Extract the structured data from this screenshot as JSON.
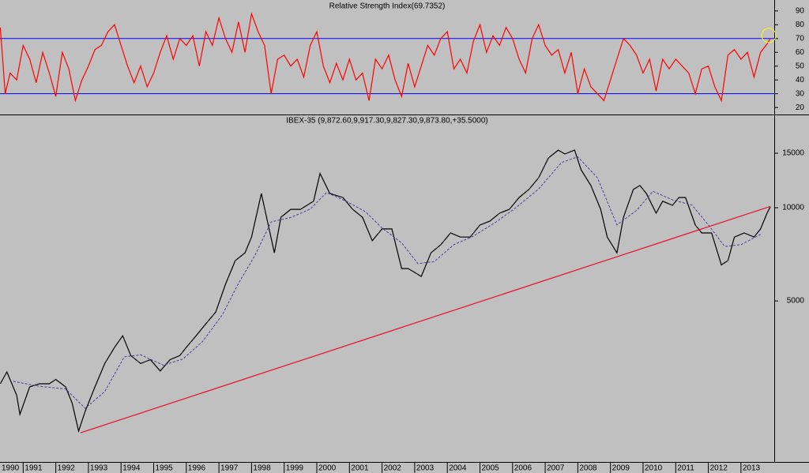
{
  "chart_data": [
    {
      "type": "line",
      "title": "Relative Strength Index(69.7352)",
      "xlim": [
        1990.29,
        2014.02
      ],
      "ylim": [
        15.5,
        96.8
      ],
      "yticks": [
        20,
        30,
        40,
        50,
        60,
        70,
        80,
        90
      ],
      "hlines": [
        70,
        30
      ],
      "hline_color": "#0000ff",
      "series": [
        {
          "color": "#ff0000",
          "x": [
            1990.3,
            1990.45,
            1990.6,
            1990.8,
            1991.0,
            1991.2,
            1991.4,
            1991.6,
            1991.8,
            1992.0,
            1992.2,
            1992.4,
            1992.6,
            1992.8,
            1993.0,
            1993.2,
            1993.4,
            1993.6,
            1993.8,
            1994.0,
            1994.2,
            1994.4,
            1994.6,
            1994.8,
            1995.0,
            1995.2,
            1995.4,
            1995.6,
            1995.8,
            1996.0,
            1996.2,
            1996.4,
            1996.6,
            1996.8,
            1997.0,
            1997.2,
            1997.4,
            1997.6,
            1997.8,
            1998.0,
            1998.2,
            1998.4,
            1998.6,
            1998.8,
            1999.0,
            1999.2,
            1999.4,
            1999.6,
            1999.8,
            2000.0,
            2000.2,
            2000.4,
            2000.6,
            2000.8,
            2001.0,
            2001.2,
            2001.4,
            2001.6,
            2001.8,
            2002.0,
            2002.2,
            2002.4,
            2002.6,
            2002.8,
            2003.0,
            2003.2,
            2003.4,
            2003.6,
            2003.8,
            2004.0,
            2004.2,
            2004.4,
            2004.6,
            2004.8,
            2005.0,
            2005.2,
            2005.4,
            2005.6,
            2005.8,
            2006.0,
            2006.2,
            2006.4,
            2006.6,
            2006.8,
            2007.0,
            2007.2,
            2007.4,
            2007.6,
            2007.8,
            2008.0,
            2008.2,
            2008.4,
            2008.6,
            2008.8,
            2009.0,
            2009.2,
            2009.4,
            2009.6,
            2009.8,
            2010.0,
            2010.2,
            2010.4,
            2010.6,
            2010.8,
            2011.0,
            2011.2,
            2011.4,
            2011.6,
            2011.8,
            2012.0,
            2012.2,
            2012.4,
            2012.6,
            2012.8,
            2013.0,
            2013.2,
            2013.4,
            2013.6,
            2013.8,
            2013.9
          ],
          "values": [
            78,
            30,
            45,
            40,
            65,
            55,
            38,
            60,
            45,
            28,
            60,
            48,
            25,
            40,
            50,
            62,
            65,
            75,
            80,
            65,
            50,
            38,
            50,
            35,
            45,
            60,
            72,
            55,
            70,
            65,
            72,
            50,
            75,
            65,
            85,
            70,
            60,
            82,
            60,
            88,
            75,
            65,
            30,
            55,
            58,
            50,
            55,
            42,
            65,
            75,
            50,
            38,
            52,
            40,
            55,
            40,
            45,
            25,
            55,
            48,
            58,
            40,
            28,
            52,
            35,
            50,
            65,
            58,
            70,
            75,
            48,
            55,
            45,
            68,
            80,
            60,
            72,
            65,
            78,
            70,
            55,
            45,
            70,
            80,
            65,
            58,
            62,
            45,
            60,
            30,
            48,
            35,
            30,
            25,
            40,
            55,
            70,
            65,
            58,
            45,
            55,
            32,
            55,
            48,
            55,
            50,
            45,
            30,
            48,
            50,
            35,
            25,
            58,
            62,
            55,
            60,
            42,
            60,
            66,
            70
          ]
        }
      ]
    },
    {
      "type": "line",
      "title": "IBEX-35 (9,872.60,9,917.30,9,827.30,9,873.80,+35.5000)",
      "log_scale": true,
      "xlim": [
        1990.29,
        2014.02
      ],
      "ylim": [
        1510,
        19770
      ],
      "xticks": [
        1990,
        1991,
        1992,
        1993,
        1994,
        1995,
        1996,
        1997,
        1998,
        1999,
        2000,
        2001,
        2002,
        2003,
        2004,
        2005,
        2006,
        2007,
        2008,
        2009,
        2010,
        2011,
        2012,
        2013
      ],
      "yticks": [
        5000,
        10000,
        15000
      ],
      "series": [
        {
          "color": "#000000",
          "x": [
            1990.3,
            1990.5,
            1990.8,
            1990.9,
            1991.2,
            1991.5,
            1991.8,
            1992.0,
            1992.3,
            1992.5,
            1992.7,
            1992.9,
            1993.2,
            1993.5,
            1993.8,
            1994.05,
            1994.3,
            1994.6,
            1994.9,
            1995.2,
            1995.5,
            1995.8,
            1996.0,
            1996.3,
            1996.6,
            1996.9,
            1997.2,
            1997.5,
            1997.8,
            1998.0,
            1998.3,
            1998.7,
            1998.9,
            1999.2,
            1999.5,
            1999.9,
            2000.1,
            2000.4,
            2000.8,
            2001.1,
            2001.4,
            2001.7,
            2002.0,
            2002.3,
            2002.6,
            2002.8,
            2003.0,
            2003.2,
            2003.5,
            2003.8,
            2004.1,
            2004.4,
            2004.7,
            2005.0,
            2005.3,
            2005.6,
            2005.9,
            2006.2,
            2006.5,
            2006.8,
            2007.1,
            2007.4,
            2007.6,
            2007.9,
            2008.1,
            2008.4,
            2008.7,
            2008.9,
            2009.2,
            2009.4,
            2009.7,
            2009.9,
            2010.1,
            2010.4,
            2010.6,
            2010.9,
            2011.1,
            2011.3,
            2011.6,
            2011.8,
            2012.1,
            2012.4,
            2012.6,
            2012.8,
            2013.1,
            2013.4,
            2013.6,
            2013.8,
            2013.9
          ],
          "values": [
            2700,
            2950,
            2480,
            2150,
            2640,
            2700,
            2700,
            2790,
            2640,
            2340,
            1900,
            2200,
            2640,
            3140,
            3540,
            3860,
            3330,
            3140,
            3230,
            2970,
            3230,
            3330,
            3540,
            3860,
            4220,
            4600,
            5660,
            6750,
            7150,
            8040,
            11120,
            7150,
            9320,
            9880,
            9880,
            10500,
            12900,
            11120,
            10790,
            9880,
            9320,
            7820,
            8540,
            8540,
            6360,
            6360,
            6180,
            6000,
            7150,
            7590,
            8290,
            8040,
            8040,
            8790,
            9050,
            9600,
            9880,
            10790,
            11450,
            12500,
            14480,
            15350,
            14910,
            15350,
            13260,
            11800,
            9880,
            8040,
            7150,
            9320,
            11450,
            11800,
            11120,
            9600,
            10500,
            10180,
            10790,
            10790,
            8790,
            8290,
            8290,
            6540,
            6750,
            8040,
            8290,
            8040,
            8540,
            9600,
            10060
          ]
        },
        {
          "color": "#4b3c9c",
          "dash": true,
          "x": [
            1990.7,
            1991.5,
            1992.3,
            1992.9,
            1993.5,
            1994.1,
            1994.6,
            1995.3,
            1995.9,
            1996.5,
            1997.1,
            1997.6,
            1998.1,
            1998.6,
            1999.2,
            1999.8,
            2000.3,
            2000.9,
            2001.5,
            2002.0,
            2002.6,
            2003.1,
            2003.6,
            2004.2,
            2004.8,
            2005.5,
            2006.1,
            2006.8,
            2007.5,
            2008.0,
            2008.6,
            2009.2,
            2009.8,
            2010.3,
            2010.9,
            2011.5,
            2012.0,
            2012.5,
            2013.0,
            2013.6
          ],
          "values": [
            2750,
            2650,
            2600,
            2250,
            2550,
            3300,
            3350,
            3100,
            3250,
            3700,
            4500,
            5700,
            7000,
            9000,
            9300,
            9900,
            11200,
            10500,
            9700,
            8600,
            7700,
            6600,
            6700,
            7600,
            8100,
            9000,
            10000,
            11500,
            14000,
            14600,
            12500,
            8800,
            9800,
            11300,
            10600,
            10200,
            8800,
            7500,
            7600,
            8200
          ]
        },
        {
          "color": "#e8102a",
          "x": [
            1992.76,
            2013.9
          ],
          "values": [
            1875,
            10100
          ]
        }
      ]
    }
  ]
}
